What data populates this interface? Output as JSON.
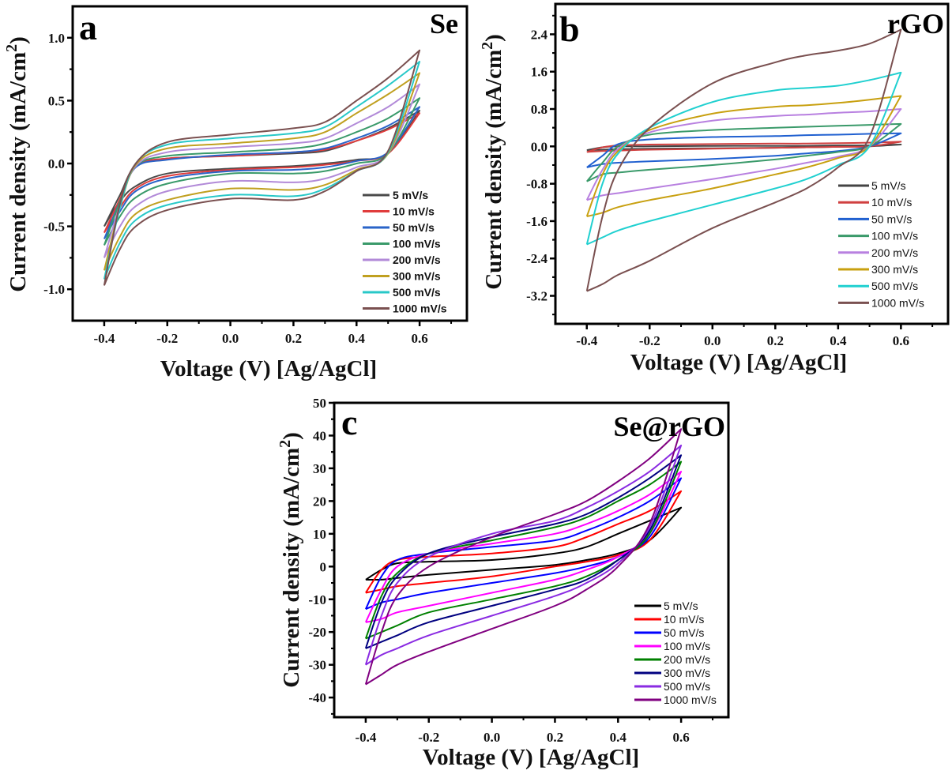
{
  "chart_data": [
    {
      "type": "line",
      "panel_letter": "a",
      "title": "Se",
      "xlabel": "Voltage (V) [Ag/AgCl]",
      "ylabel_main": "Current density (mA/cm",
      "ylabel_sup": "2",
      "ylabel_end": ")",
      "xlim": [
        -0.5,
        0.75
      ],
      "ylim": [
        -1.25,
        1.25
      ],
      "xticks": [
        -0.4,
        -0.2,
        0.0,
        0.2,
        0.4,
        0.6
      ],
      "xtick_labels": [
        "-0.4",
        "-0.2",
        "0.0",
        "0.2",
        "0.4",
        "0.6"
      ],
      "yticks": [
        -1.0,
        -0.5,
        0.0,
        0.5,
        1.0
      ],
      "ytick_labels": [
        "-1.0",
        "-0.5",
        "0.0",
        "0.5",
        "1.0"
      ],
      "grid": false,
      "legend_position": "bottom-right",
      "x": [
        -0.4,
        -0.35,
        -0.3,
        -0.2,
        0.0,
        0.2,
        0.3,
        0.4,
        0.5,
        0.6
      ],
      "series": [
        {
          "name": "5 mV/s",
          "color": "#4a4a4a",
          "forward": [
            -0.5,
            -0.25,
            -0.02,
            0.04,
            0.06,
            0.08,
            0.1,
            0.18,
            0.28,
            0.42
          ],
          "reverse": [
            -0.5,
            -0.3,
            -0.18,
            -0.08,
            -0.04,
            -0.02,
            0.0,
            0.03,
            0.08,
            0.42
          ]
        },
        {
          "name": "10 mV/s",
          "color": "#e03c3c",
          "forward": [
            -0.55,
            -0.28,
            -0.02,
            0.04,
            0.06,
            0.09,
            0.11,
            0.18,
            0.27,
            0.4
          ],
          "reverse": [
            -0.55,
            -0.35,
            -0.2,
            -0.1,
            -0.05,
            -0.03,
            -0.01,
            0.02,
            0.08,
            0.4
          ]
        },
        {
          "name": "50 mV/s",
          "color": "#2a64c8",
          "forward": [
            -0.6,
            -0.3,
            -0.03,
            0.03,
            0.07,
            0.09,
            0.12,
            0.2,
            0.3,
            0.45
          ],
          "reverse": [
            -0.6,
            -0.38,
            -0.22,
            -0.12,
            -0.06,
            -0.05,
            -0.03,
            0.02,
            0.09,
            0.45
          ]
        },
        {
          "name": "100 mV/s",
          "color": "#3a9a6a",
          "forward": [
            -0.65,
            -0.3,
            -0.02,
            0.06,
            0.09,
            0.12,
            0.16,
            0.25,
            0.36,
            0.52
          ],
          "reverse": [
            -0.65,
            -0.42,
            -0.27,
            -0.16,
            -0.08,
            -0.08,
            -0.06,
            0.0,
            0.08,
            0.52
          ]
        },
        {
          "name": "200 mV/s",
          "color": "#b28ad8",
          "forward": [
            -0.75,
            -0.33,
            -0.02,
            0.09,
            0.13,
            0.16,
            0.2,
            0.32,
            0.45,
            0.63
          ],
          "reverse": [
            -0.75,
            -0.5,
            -0.34,
            -0.22,
            -0.14,
            -0.15,
            -0.12,
            -0.03,
            0.08,
            0.63
          ]
        },
        {
          "name": "300 mV/s",
          "color": "#c0a020",
          "forward": [
            -0.85,
            -0.35,
            -0.01,
            0.12,
            0.16,
            0.2,
            0.25,
            0.4,
            0.55,
            0.72
          ],
          "reverse": [
            -0.85,
            -0.58,
            -0.4,
            -0.29,
            -0.2,
            -0.21,
            -0.17,
            -0.05,
            0.08,
            0.72
          ]
        },
        {
          "name": "500 mV/s",
          "color": "#28c8c8",
          "forward": [
            -0.92,
            -0.35,
            0.0,
            0.15,
            0.2,
            0.24,
            0.29,
            0.45,
            0.62,
            0.81
          ],
          "reverse": [
            -0.92,
            -0.63,
            -0.45,
            -0.33,
            -0.25,
            -0.26,
            -0.2,
            -0.06,
            0.09,
            0.81
          ]
        },
        {
          "name": "1000 mV/s",
          "color": "#7a5050",
          "forward": [
            -0.97,
            -0.32,
            0.0,
            0.17,
            0.23,
            0.28,
            0.33,
            0.5,
            0.68,
            0.9
          ],
          "reverse": [
            -0.97,
            -0.68,
            -0.5,
            -0.37,
            -0.28,
            -0.29,
            -0.22,
            -0.06,
            0.1,
            0.9
          ]
        }
      ]
    },
    {
      "type": "line",
      "panel_letter": "b",
      "title": "rGO",
      "xlabel": "Voltage (V) [Ag/AgCl]",
      "ylabel_main": "Current density (mA/cm",
      "ylabel_sup": "2",
      "ylabel_end": ")",
      "xlim": [
        -0.5,
        0.75
      ],
      "ylim": [
        -3.8,
        3.05
      ],
      "xticks": [
        -0.4,
        -0.2,
        0.0,
        0.2,
        0.4,
        0.6
      ],
      "xtick_labels": [
        "-0.4",
        "-0.2",
        "0.0",
        "0.2",
        "0.4",
        "0.6"
      ],
      "yticks": [
        -3.2,
        -2.4,
        -1.6,
        -0.8,
        0.0,
        0.8,
        1.6,
        2.4
      ],
      "ytick_labels": [
        "-3.2",
        "-2.4",
        "-1.6",
        "-0.8",
        "0.0",
        "0.8",
        "1.6",
        "2.4"
      ],
      "grid": false,
      "legend_position": "bottom-right",
      "x": [
        -0.4,
        -0.35,
        -0.3,
        -0.2,
        0.0,
        0.2,
        0.3,
        0.4,
        0.5,
        0.6
      ],
      "series": [
        {
          "name": "5 mV/s",
          "color": "#444444",
          "forward": [
            -0.08,
            -0.02,
            0.0,
            0.0,
            0.01,
            0.01,
            0.01,
            0.02,
            0.02,
            0.04
          ],
          "reverse": [
            -0.08,
            -0.07,
            -0.06,
            -0.05,
            -0.04,
            -0.03,
            -0.02,
            -0.01,
            0.0,
            0.04
          ]
        },
        {
          "name": "10 mV/s",
          "color": "#d04040",
          "forward": [
            -0.12,
            -0.02,
            0.02,
            0.04,
            0.05,
            0.06,
            0.06,
            0.07,
            0.08,
            0.1
          ],
          "reverse": [
            -0.12,
            -0.1,
            -0.09,
            -0.07,
            -0.05,
            -0.03,
            -0.02,
            -0.01,
            0.0,
            0.1
          ]
        },
        {
          "name": "50 mV/s",
          "color": "#2060d0",
          "forward": [
            -0.45,
            -0.2,
            0.05,
            0.15,
            0.2,
            0.22,
            0.24,
            0.25,
            0.27,
            0.28
          ],
          "reverse": [
            -0.45,
            -0.38,
            -0.35,
            -0.32,
            -0.27,
            -0.2,
            -0.15,
            -0.1,
            0.0,
            0.28
          ]
        },
        {
          "name": "100 mV/s",
          "color": "#3a9a6a",
          "forward": [
            -0.75,
            -0.35,
            0.0,
            0.25,
            0.35,
            0.4,
            0.42,
            0.44,
            0.46,
            0.48
          ],
          "reverse": [
            -0.75,
            -0.6,
            -0.56,
            -0.5,
            -0.4,
            -0.28,
            -0.2,
            -0.12,
            0.0,
            0.48
          ]
        },
        {
          "name": "200 mV/s",
          "color": "#b880e0",
          "forward": [
            -1.15,
            -0.5,
            -0.05,
            0.3,
            0.55,
            0.65,
            0.68,
            0.72,
            0.75,
            0.8
          ],
          "reverse": [
            -1.15,
            -1.05,
            -1.0,
            -0.9,
            -0.7,
            -0.48,
            -0.35,
            -0.22,
            0.0,
            0.8
          ]
        },
        {
          "name": "300 mV/s",
          "color": "#c8a010",
          "forward": [
            -1.5,
            -0.6,
            -0.1,
            0.35,
            0.7,
            0.85,
            0.88,
            0.93,
            1.0,
            1.08
          ],
          "reverse": [
            -1.5,
            -1.42,
            -1.3,
            -1.15,
            -0.9,
            -0.6,
            -0.45,
            -0.25,
            0.0,
            1.08
          ]
        },
        {
          "name": "500 mV/s",
          "color": "#20d0d0",
          "forward": [
            -2.1,
            -0.8,
            -0.15,
            0.4,
            0.95,
            1.2,
            1.25,
            1.3,
            1.42,
            1.58
          ],
          "reverse": [
            -2.1,
            -1.95,
            -1.8,
            -1.6,
            -1.25,
            -0.9,
            -0.7,
            -0.4,
            0.0,
            1.58
          ]
        },
        {
          "name": "1000 mV/s",
          "color": "#7a5050",
          "forward": [
            -3.1,
            -1.5,
            -0.5,
            0.4,
            1.35,
            1.8,
            1.95,
            2.05,
            2.2,
            2.5
          ],
          "reverse": [
            -3.1,
            -2.95,
            -2.75,
            -2.45,
            -1.75,
            -1.2,
            -0.9,
            -0.45,
            0.2,
            2.5
          ]
        }
      ]
    },
    {
      "type": "line",
      "panel_letter": "c",
      "title": "Se@rGO",
      "xlabel": "Voltage (V) [Ag/AgCl]",
      "ylabel_main": "Current density (mA/cm",
      "ylabel_sup": "2",
      "ylabel_end": ")",
      "xlim": [
        -0.5,
        0.75
      ],
      "ylim": [
        -46,
        50
      ],
      "xticks": [
        -0.4,
        -0.2,
        0.0,
        0.2,
        0.4,
        0.6
      ],
      "xtick_labels": [
        "-0.4",
        "-0.2",
        "0.0",
        "0.2",
        "0.4",
        "0.6"
      ],
      "yticks": [
        -40,
        -30,
        -20,
        -10,
        0,
        10,
        20,
        30,
        40,
        50
      ],
      "ytick_labels": [
        "-40",
        "-30",
        "-20",
        "-10",
        "0",
        "10",
        "20",
        "30",
        "40",
        "50"
      ],
      "grid": false,
      "legend_position": "bottom-right",
      "x": [
        -0.4,
        -0.35,
        -0.3,
        -0.2,
        0.0,
        0.2,
        0.3,
        0.4,
        0.5,
        0.6
      ],
      "series": [
        {
          "name": "5 mV/s",
          "color": "#000000",
          "forward": [
            -4,
            -1,
            1,
            1.5,
            2,
            4,
            6,
            10,
            14,
            18
          ],
          "reverse": [
            -4,
            -4,
            -3.5,
            -2.5,
            -1,
            0.5,
            2,
            4,
            8,
            18
          ]
        },
        {
          "name": "10 mV/s",
          "color": "#ff0000",
          "forward": [
            -8,
            -1,
            2,
            3,
            4,
            6,
            9,
            13,
            17,
            23
          ],
          "reverse": [
            -8,
            -7,
            -6,
            -5,
            -3,
            0,
            1.5,
            3.5,
            8,
            23
          ]
        },
        {
          "name": "50 mV/s",
          "color": "#0000ff",
          "forward": [
            -13,
            -3,
            2,
            4,
            6,
            8,
            11,
            15,
            20,
            27
          ],
          "reverse": [
            -13,
            -11,
            -10,
            -8,
            -5,
            -2,
            0,
            3,
            9,
            27
          ]
        },
        {
          "name": "100 mV/s",
          "color": "#ff00ff",
          "forward": [
            -17,
            -7,
            0,
            4,
            7,
            10,
            13,
            17,
            22,
            29
          ],
          "reverse": [
            -17,
            -16,
            -14,
            -12,
            -8,
            -4,
            -1,
            3,
            10,
            29
          ]
        },
        {
          "name": "200 mV/s",
          "color": "#008000",
          "forward": [
            -22,
            -9,
            -2,
            4,
            8,
            12,
            15,
            20,
            25,
            32
          ],
          "reverse": [
            -22,
            -20,
            -18,
            -14,
            -10,
            -6,
            -3,
            2,
            10,
            32
          ]
        },
        {
          "name": "300 mV/s",
          "color": "#000080",
          "forward": [
            -25,
            -11,
            -3,
            4,
            9,
            13,
            16,
            21,
            27,
            34
          ],
          "reverse": [
            -25,
            -23,
            -21,
            -17,
            -12,
            -7,
            -4,
            2,
            11,
            34
          ]
        },
        {
          "name": "500 mV/s",
          "color": "#8a2be2",
          "forward": [
            -30,
            -15,
            -5,
            3,
            10,
            14,
            18,
            23,
            29,
            37
          ],
          "reverse": [
            -30,
            -27,
            -25,
            -21,
            -15,
            -9,
            -5,
            1,
            12,
            37
          ]
        },
        {
          "name": "1000 mV/s",
          "color": "#800080",
          "forward": [
            -36,
            -20,
            -9,
            0,
            9,
            16,
            20,
            26,
            33,
            42
          ],
          "reverse": [
            -36,
            -33,
            -30,
            -26,
            -19,
            -12,
            -7,
            0,
            13,
            42
          ]
        }
      ]
    }
  ]
}
